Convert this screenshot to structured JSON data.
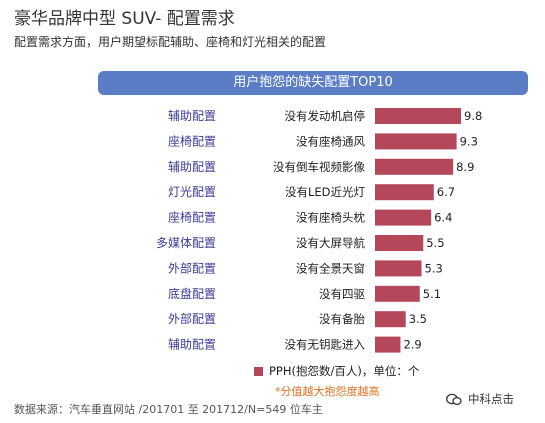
{
  "title": "豪华品牌中型 SUV- 配置需求",
  "subtitle": "配置需求方面，用户期望标配辅助、座椅和灯光相关的配置",
  "legend_label": "PPH(抱怨数/百人)，单位：个",
  "note": "*分值越大抱怨度越高",
  "source": "数据来源：汽车垂直网站 /201701 至 201712/N=549 位车主",
  "watermark": "中科点击",
  "colors": {
    "bar": "#b5475a",
    "banner": "#5b7dc5",
    "category_text": "#3b3b98",
    "note": "#e0701f"
  },
  "chart_data": {
    "type": "bar",
    "orientation": "horizontal",
    "title": "用户抱怨的缺失配置TOP10",
    "categories": [
      "没有发动机启停",
      "没有座椅通风",
      "没有倒车视频影像",
      "没有LED近光灯",
      "没有座椅头枕",
      "没有大屏导航",
      "没有全景天窗",
      "没有四驱",
      "没有备胎",
      "没有无钥匙进入"
    ],
    "groups": [
      "辅助配置",
      "座椅配置",
      "辅助配置",
      "灯光配置",
      "座椅配置",
      "多媒体配置",
      "外部配置",
      "底盘配置",
      "外部配置",
      "辅助配置"
    ],
    "series": [
      {
        "name": "PPH(抱怨数/百人)",
        "values": [
          9.8,
          9.3,
          8.9,
          6.7,
          6.4,
          5.5,
          5.3,
          5.1,
          3.5,
          2.9
        ]
      }
    ],
    "xlim": [
      0,
      9.8
    ],
    "legend_position": "bottom"
  }
}
